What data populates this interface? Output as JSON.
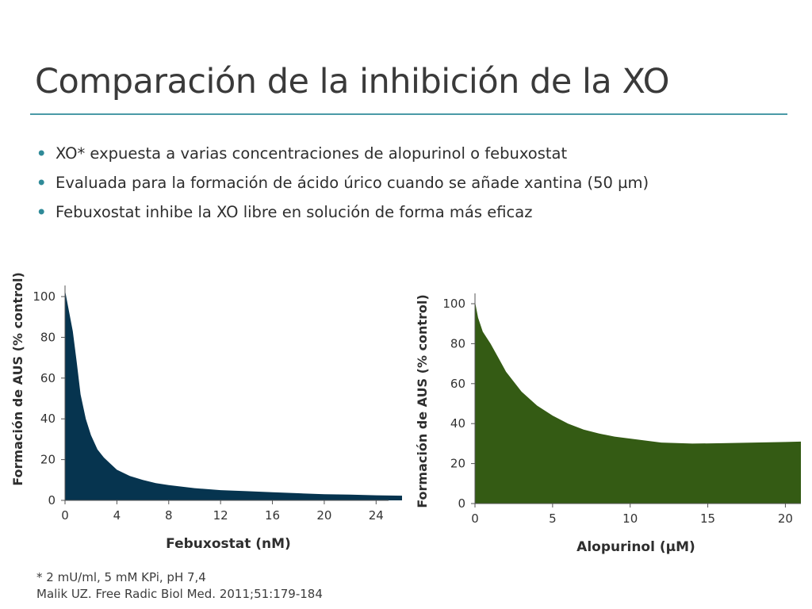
{
  "slide": {
    "title": "Comparación de la inhibición de la XO",
    "bullets": [
      "XO* expuesta a varias concentraciones de alopurinol o febuxostat",
      "Evaluada para la formación de ácido úrico cuando se añade xantina (50 µm)",
      "Febuxostat inhibe la XO libre en solución de forma más eficaz"
    ],
    "footnotes": [
      "* 2 mU/ml, 5 mM KPi, pH 7,4",
      "Malik UZ. Free Radic Biol Med. 2011;51:179-184"
    ]
  },
  "colors": {
    "accent": "#4a9aa7",
    "bullet": "#2f8a98",
    "febuxostat_fill": "#06344f",
    "alopurinol_fill": "#345b14"
  },
  "chart_data": [
    {
      "type": "area",
      "title": "",
      "xlabel": "Febuxostat (nM)",
      "ylabel": "Formación de AUS (% control)",
      "xlim": [
        0,
        26
      ],
      "ylim": [
        0,
        100
      ],
      "xticks": [
        0,
        4,
        8,
        12,
        16,
        20,
        24
      ],
      "yticks": [
        0,
        20,
        40,
        60,
        80,
        100
      ],
      "series": [
        {
          "x": [
            0,
            0.3,
            0.6,
            0.9,
            1.2,
            1.6,
            2,
            2.5,
            3,
            3.5,
            4,
            5,
            6,
            7,
            8,
            10,
            12,
            14,
            16,
            18,
            20,
            22,
            24,
            26
          ],
          "y": [
            103,
            93,
            83,
            68,
            52,
            40,
            32,
            25,
            21,
            18,
            15,
            12,
            10,
            8.5,
            7.5,
            6,
            5,
            4.5,
            4,
            3.5,
            3,
            2.8,
            2.5,
            2.3
          ]
        }
      ]
    },
    {
      "type": "area",
      "title": "",
      "xlabel": "Alopurinol (µM)",
      "ylabel": "Formación de AUS (% control)",
      "xlim": [
        0,
        21
      ],
      "ylim": [
        0,
        100
      ],
      "xticks": [
        0,
        5,
        10,
        15,
        20
      ],
      "yticks": [
        0,
        20,
        40,
        60,
        80,
        100
      ],
      "series": [
        {
          "x": [
            0,
            0.2,
            0.5,
            1,
            1.5,
            2,
            3,
            4,
            5,
            6,
            7,
            8,
            9,
            10,
            12,
            14,
            16,
            18,
            20,
            21
          ],
          "y": [
            101,
            93,
            86,
            80,
            73,
            66,
            56,
            49,
            44,
            40,
            37,
            35,
            33.5,
            32.5,
            30.5,
            30,
            30.2,
            30.5,
            30.8,
            31
          ]
        }
      ]
    }
  ]
}
